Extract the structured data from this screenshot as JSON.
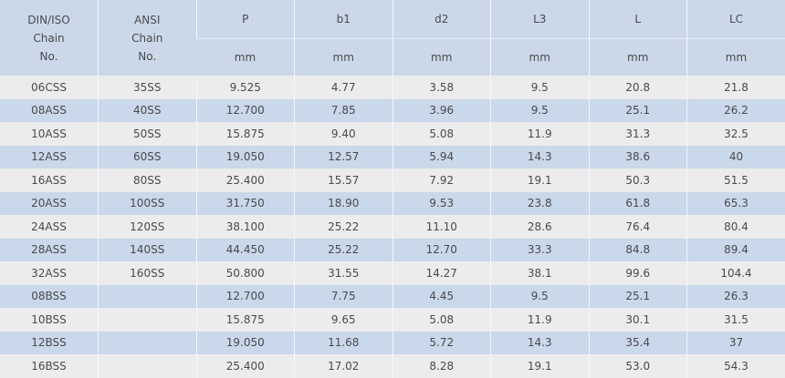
{
  "table": {
    "headers": [
      {
        "label": "DIN/ISO Chain No.",
        "lines": [
          "DIN/ISO",
          "Chain",
          "No."
        ]
      },
      {
        "label": "ANSI Chain No.",
        "lines": [
          "ANSI",
          "Chain",
          "No."
        ]
      },
      {
        "label": "P",
        "unit": "mm"
      },
      {
        "label": "b1",
        "unit": "mm"
      },
      {
        "label": "d2",
        "unit": "mm"
      },
      {
        "label": "L3",
        "unit": "mm"
      },
      {
        "label": "L",
        "unit": "mm"
      },
      {
        "label": "LC",
        "unit": "mm"
      }
    ],
    "rows": [
      [
        "06CSS",
        "35SS",
        "9.525",
        "4.77",
        "3.58",
        "9.5",
        "20.8",
        "21.8"
      ],
      [
        "08ASS",
        "40SS",
        "12.700",
        "7.85",
        "3.96",
        "9.5",
        "25.1",
        "26.2"
      ],
      [
        "10ASS",
        "50SS",
        "15.875",
        "9.40",
        "5.08",
        "11.9",
        "31.3",
        "32.5"
      ],
      [
        "12ASS",
        "60SS",
        "19.050",
        "12.57",
        "5.94",
        "14.3",
        "38.6",
        "40"
      ],
      [
        "16ASS",
        "80SS",
        "25.400",
        "15.57",
        "7.92",
        "19.1",
        "50.3",
        "51.5"
      ],
      [
        "20ASS",
        "100SS",
        "31.750",
        "18.90",
        "9.53",
        "23.8",
        "61.8",
        "65.3"
      ],
      [
        "24ASS",
        "120SS",
        "38.100",
        "25.22",
        "11.10",
        "28.6",
        "76.4",
        "80.4"
      ],
      [
        "28ASS",
        "140SS",
        "44.450",
        "25.22",
        "12.70",
        "33.3",
        "84.8",
        "89.4"
      ],
      [
        "32ASS",
        "160SS",
        "50.800",
        "31.55",
        "14.27",
        "38.1",
        "99.6",
        "104.4"
      ],
      [
        "08BSS",
        "",
        "12.700",
        "7.75",
        "4.45",
        "9.5",
        "25.1",
        "26.3"
      ],
      [
        "10BSS",
        "",
        "15.875",
        "9.65",
        "5.08",
        "11.9",
        "30.1",
        "31.5"
      ],
      [
        "12BSS",
        "",
        "19.050",
        "11.68",
        "5.72",
        "14.3",
        "35.4",
        "37"
      ],
      [
        "16BSS",
        "",
        "25.400",
        "17.02",
        "8.28",
        "19.1",
        "53.0",
        "54.3"
      ]
    ]
  },
  "colors": {
    "header_bg": "#cbd8e9",
    "row_odd": "#ececec",
    "row_even": "#c9d8ea",
    "text": "#4a4a4a"
  }
}
